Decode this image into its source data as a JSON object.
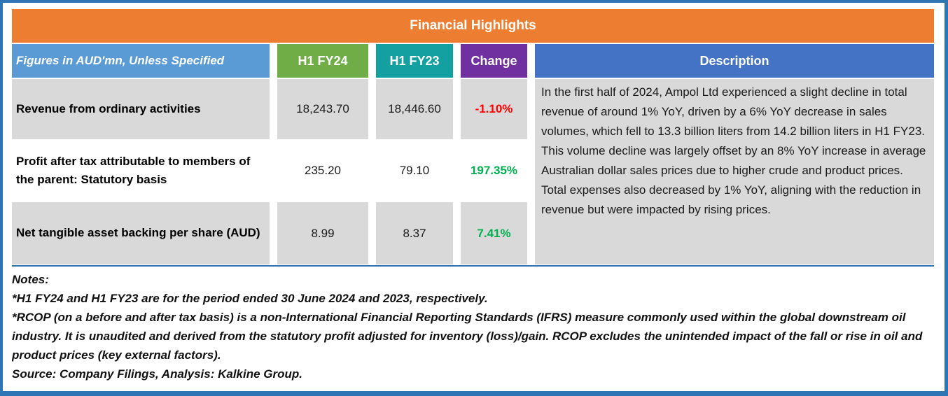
{
  "title": "Financial Highlights",
  "colors": {
    "banner_orange": "#ED7D31",
    "header_light_blue": "#5B9BD5",
    "header_dark_blue": "#4472C4",
    "header_green": "#70AD47",
    "header_teal": "#14A0A0",
    "header_purple": "#7030A0",
    "cell_grey": "#D9D9D9",
    "border_blue": "#2E75B6",
    "negative_change": "#FF0000",
    "positive_change": "#00B050"
  },
  "table": {
    "headers": {
      "label": "Figures in AUD'mn, Unless Specified",
      "h1fy24": "H1 FY24",
      "h1fy23": "H1 FY23",
      "change": "Change",
      "description": "Description"
    },
    "rows": [
      {
        "label": "Revenue from ordinary activities",
        "h1fy24": "18,243.70",
        "h1fy23": "18,446.60",
        "change": "-1.10%",
        "change_direction": "negative"
      },
      {
        "label": "Profit after tax attributable to members of the parent: Statutory basis",
        "h1fy24": "235.20",
        "h1fy23": "79.10",
        "change": "197.35%",
        "change_direction": "positive"
      },
      {
        "label": "Net tangible asset backing per share (AUD)",
        "h1fy24": "8.99",
        "h1fy23": "8.37",
        "change": "7.41%",
        "change_direction": "positive"
      }
    ],
    "description": "In the first half of 2024, Ampol Ltd experienced a slight decline in total revenue of around 1% YoY, driven by a 6% YoY decrease in sales volumes, which fell to 13.3 billion liters from 14.2 billion liters in H1 FY23. This volume decline was largely offset by an 8% YoY increase in average Australian dollar sales prices due to higher crude and product prices. Total expenses also decreased by 1% YoY, aligning with the reduction in revenue but were impacted by rising prices."
  },
  "notes": {
    "heading": "Notes:",
    "items": [
      "*H1 FY24 and H1 FY23 are for the period ended 30 June 2024 and 2023, respectively.",
      "*RCOP (on a before and after tax basis) is a non-International Financial Reporting Standards (IFRS) measure commonly used within the global downstream oil industry. It is unaudited and derived from the statutory profit adjusted for inventory (loss)/gain. RCOP excludes the unintended impact of the fall or rise in oil and product prices (key external factors).",
      "Source: Company Filings, Analysis: Kalkine Group."
    ]
  }
}
